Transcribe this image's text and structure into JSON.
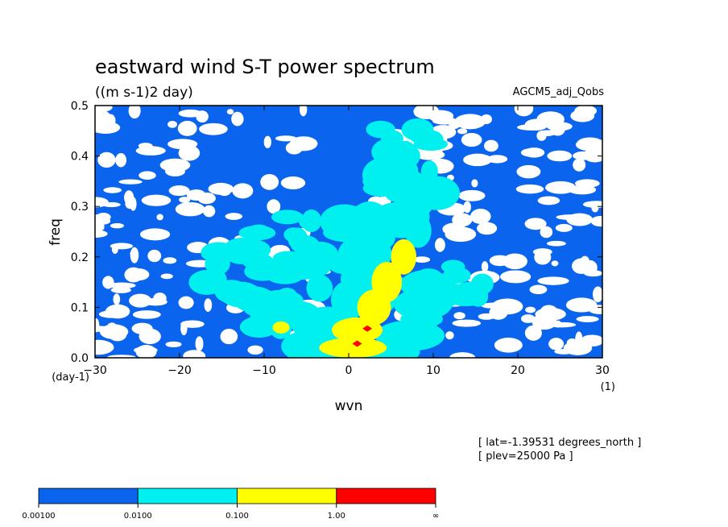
{
  "chart_data": {
    "type": "heatmap",
    "title": "eastward wind S-T power spectrum",
    "subtitle": "((m s-1)2 day)",
    "run_label": "AGCM5_adj_Qobs",
    "xlabel": "wvn",
    "x_unit": "(1)",
    "ylabel": "freq",
    "y_unit": "(day-1)",
    "xlim": [
      -30,
      30
    ],
    "ylim": [
      0,
      0.5
    ],
    "x_ticks": [
      "-30",
      "-20",
      "-10",
      "0",
      "10",
      "20",
      "30"
    ],
    "y_ticks": [
      "0.0",
      "0.1",
      "0.2",
      "0.3",
      "0.4",
      "0.5"
    ],
    "info": [
      "[ lat=-1.39531 degrees_north ]",
      "[ plev=25000 Pa ]"
    ],
    "levels": [
      {
        "label": "0.00100",
        "color": "#0a64ee"
      },
      {
        "label": "0.0100",
        "color": "#00f0f0"
      },
      {
        "label": "0.100",
        "color": "#ffff00"
      },
      {
        "label": "1.00",
        "color": "#ff0000"
      },
      {
        "label": "∞",
        "color": ""
      }
    ],
    "below_color": "#ffffff",
    "cyan_regions": [
      {
        "x": 7,
        "y": 0.4,
        "rx": 4,
        "ry": 0.06
      },
      {
        "x": 6,
        "y": 0.32,
        "rx": 5,
        "ry": 0.08
      },
      {
        "x": 4,
        "y": 0.2,
        "rx": 6,
        "ry": 0.09
      },
      {
        "x": 1,
        "y": 0.08,
        "rx": 8,
        "ry": 0.08
      },
      {
        "x": -6,
        "y": 0.12,
        "rx": 5,
        "ry": 0.07
      },
      {
        "x": -12,
        "y": 0.17,
        "rx": 5,
        "ry": 0.06
      },
      {
        "x": -7,
        "y": 0.22,
        "rx": 4,
        "ry": 0.06
      },
      {
        "x": 12,
        "y": 0.15,
        "rx": 4,
        "ry": 0.05
      }
    ],
    "yellow_regions": [
      {
        "x": 6.5,
        "y": 0.2,
        "rx": 1.5,
        "ry": 0.035
      },
      {
        "x": 4.5,
        "y": 0.15,
        "rx": 1.8,
        "ry": 0.04
      },
      {
        "x": 3,
        "y": 0.1,
        "rx": 2,
        "ry": 0.035
      },
      {
        "x": 1,
        "y": 0.055,
        "rx": 3,
        "ry": 0.025
      },
      {
        "x": 0.5,
        "y": 0.02,
        "rx": 4,
        "ry": 0.02
      },
      {
        "x": -8,
        "y": 0.06,
        "rx": 1,
        "ry": 0.012
      }
    ],
    "red_peaks": [
      {
        "x": 2.2,
        "y": 0.058
      },
      {
        "x": 1.0,
        "y": 0.028
      }
    ]
  }
}
